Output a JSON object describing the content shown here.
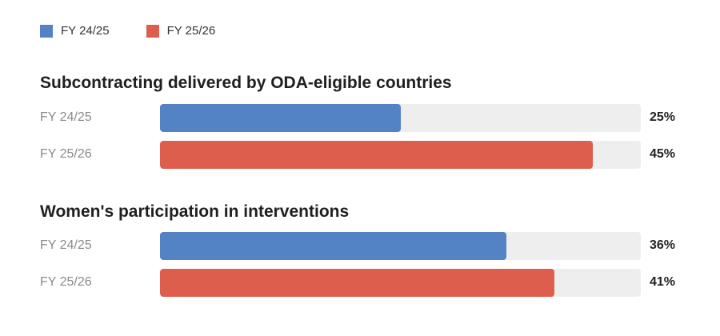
{
  "legend": [
    {
      "label": "FY 24/25",
      "color": "#5483c5"
    },
    {
      "label": "FY 25/26",
      "color": "#dd5e4c"
    }
  ],
  "colors": {
    "track": "#eeeeee",
    "fy2425": "#5483c5",
    "fy2526": "#dd5e4c"
  },
  "chart_data": {
    "type": "bar",
    "orientation": "horizontal",
    "xlim": [
      0,
      50
    ],
    "groups": [
      {
        "title": "Subcontracting delivered by ODA-eligible countries",
        "rows": [
          {
            "label": "FY 24/25",
            "value": 25,
            "display": "25%"
          },
          {
            "label": "FY 25/26",
            "value": 45,
            "display": "45%"
          }
        ]
      },
      {
        "title": "Women's participation in interventions",
        "rows": [
          {
            "label": "FY 24/25",
            "value": 36,
            "display": "36%"
          },
          {
            "label": "FY 25/26",
            "value": 41,
            "display": "41%"
          }
        ]
      }
    ]
  }
}
